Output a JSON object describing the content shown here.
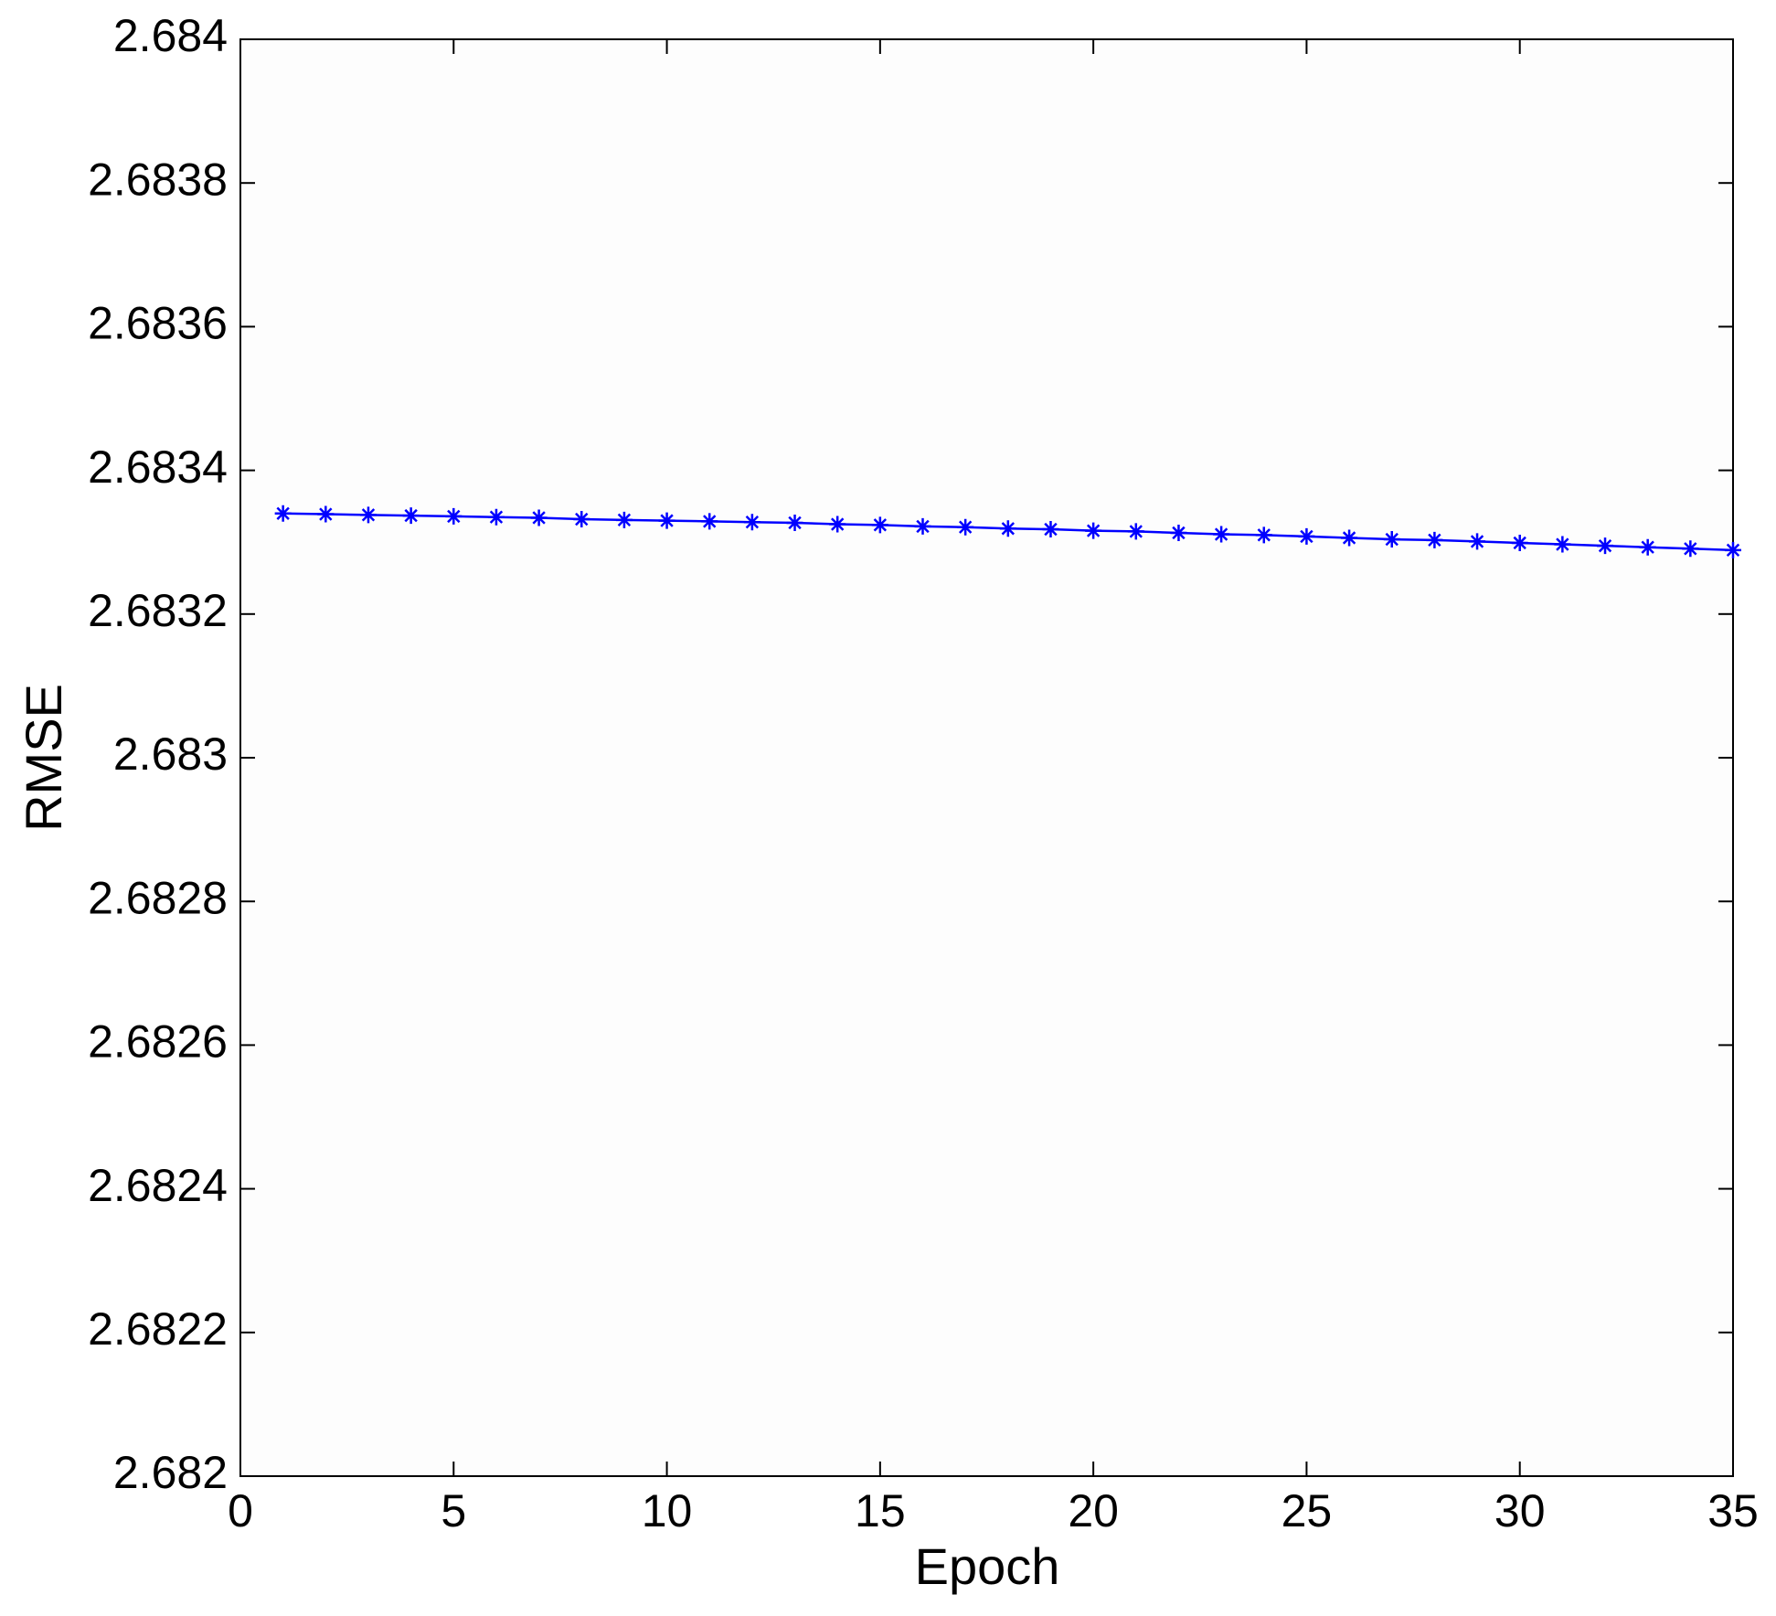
{
  "chart_data": {
    "type": "line",
    "x_label": "Epoch",
    "y_label": "RMSE",
    "xlim": [
      0,
      35
    ],
    "xticks": [
      0,
      5,
      10,
      15,
      20,
      25,
      30,
      35
    ],
    "ylim": [
      2.682,
      2.684
    ],
    "yticks": [
      2.682,
      2.6822,
      2.6824,
      2.6826,
      2.6828,
      2.683,
      2.6832,
      2.6834,
      2.6836,
      2.6838,
      2.684
    ],
    "grid": false,
    "x": [
      1,
      2,
      3,
      4,
      5,
      6,
      7,
      8,
      9,
      10,
      11,
      12,
      13,
      14,
      15,
      16,
      17,
      18,
      19,
      20,
      21,
      22,
      23,
      24,
      25,
      26,
      27,
      28,
      29,
      30,
      31,
      32,
      33,
      34,
      35
    ],
    "series": [
      {
        "color": "#0000ff",
        "marker": "asterisk",
        "values": [
          2.68334,
          2.683339,
          2.683338,
          2.683337,
          2.683336,
          2.683335,
          2.683334,
          2.683332,
          2.683331,
          2.68333,
          2.683329,
          2.683328,
          2.683327,
          2.683325,
          2.683324,
          2.683322,
          2.683321,
          2.683319,
          2.683318,
          2.683316,
          2.683315,
          2.683313,
          2.683311,
          2.68331,
          2.683308,
          2.683306,
          2.683304,
          2.683303,
          2.683301,
          2.683299,
          2.683297,
          2.683295,
          2.683293,
          2.683291,
          2.683289
        ]
      }
    ]
  }
}
